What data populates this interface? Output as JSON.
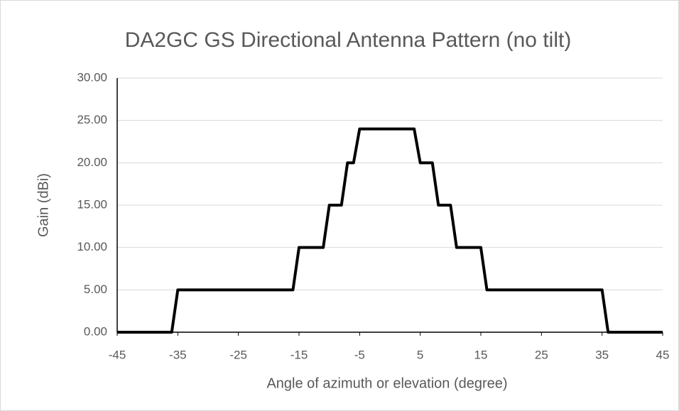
{
  "chart_data": {
    "type": "line",
    "title": "DA2GC GS Directional Antenna Pattern (no tilt)",
    "x_label": "Angle of azimuth or elevation (degree)",
    "y_label": "Gain (dBi)",
    "x": [
      -45,
      -36,
      -35,
      -16,
      -15,
      -11,
      -10,
      -8,
      -7,
      -6,
      -5,
      4,
      5,
      7,
      8,
      10,
      11,
      15,
      16,
      35,
      36,
      45
    ],
    "values": [
      0,
      0,
      5,
      5,
      10,
      10,
      15,
      15,
      20,
      20,
      24,
      24,
      20,
      20,
      15,
      15,
      10,
      10,
      5,
      5,
      0,
      0
    ],
    "color": "#000000",
    "xlim": [
      -45,
      45
    ],
    "xticks": [
      -45,
      -35,
      -25,
      -15,
      -5,
      5,
      15,
      25,
      35,
      45
    ],
    "ylim": [
      0,
      30
    ],
    "yticks": [
      {
        "value": 0,
        "label": "0.00"
      },
      {
        "value": 5,
        "label": "5.00"
      },
      {
        "value": 10,
        "label": "10.00"
      },
      {
        "value": 15,
        "label": "15.00"
      },
      {
        "value": 20,
        "label": "20.00"
      },
      {
        "value": 25,
        "label": "25.00"
      },
      {
        "value": 30,
        "label": "30.00"
      }
    ],
    "grid": true
  }
}
